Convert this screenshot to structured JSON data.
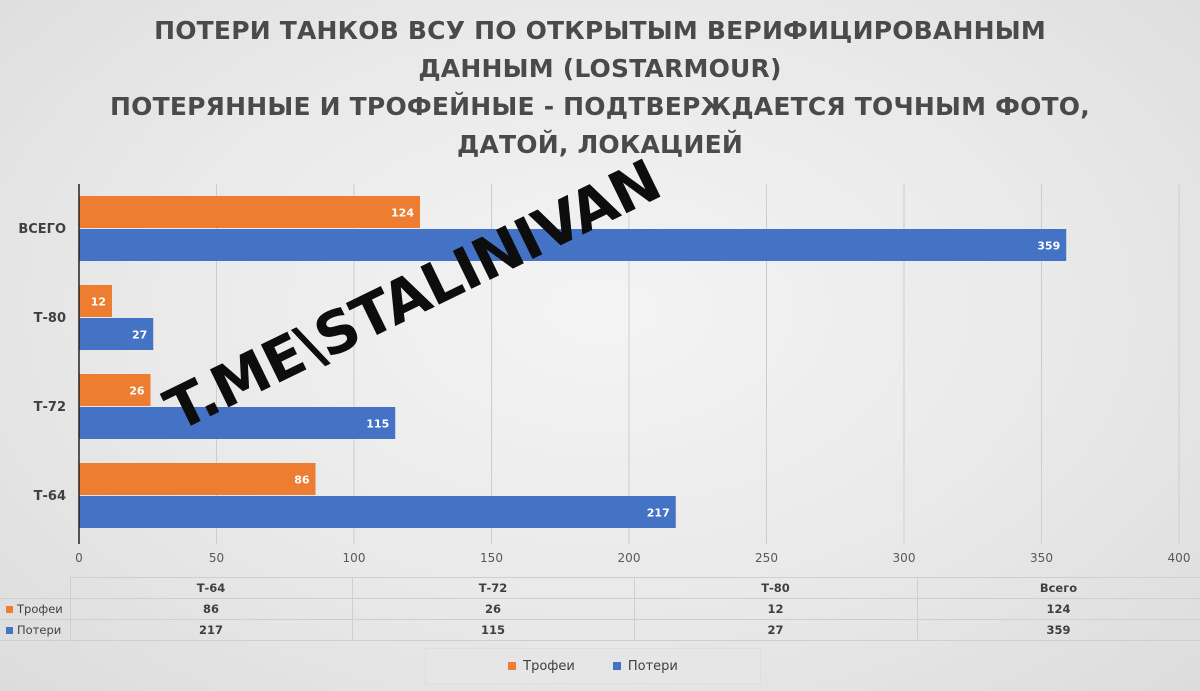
{
  "title_lines": [
    "ПОТЕРИ ТАНКОВ ВСУ ПО ОТКРЫТЫМ ВЕРИФИЦИРОВАННЫМ",
    "ДАННЫМ (LOSTARMOUR)",
    "ПОТЕРЯННЫЕ И ТРОФЕЙНЫЕ - ПОДТВЕРЖДАЕТСЯ ТОЧНЫМ ФОТО,",
    "ДАТОЙ, ЛОКАЦИЕЙ"
  ],
  "watermark": "T.ME\\STALINIVAN",
  "colors": {
    "trophies": "#ED7D31",
    "losses": "#4472C4"
  },
  "chart_data": {
    "type": "bar",
    "orientation": "horizontal",
    "categories": [
      "ВСЕГО",
      "Т-80",
      "Т-72",
      "Т-64"
    ],
    "series": [
      {
        "name": "Трофеи",
        "values": [
          124,
          12,
          26,
          86
        ]
      },
      {
        "name": "Потери",
        "values": [
          359,
          27,
          115,
          217
        ]
      }
    ],
    "xlim": [
      0,
      400
    ],
    "xticks": [
      0,
      50,
      100,
      150,
      200,
      250,
      300,
      350,
      400
    ],
    "grid": "vertical",
    "legend": "bottom"
  },
  "table": {
    "columns": [
      "Т-64",
      "Т-72",
      "Т-80",
      "Всего"
    ],
    "rows": [
      {
        "name": "Трофеи",
        "values": [
          "86",
          "26",
          "12",
          "124"
        ]
      },
      {
        "name": "Потери",
        "values": [
          "217",
          "115",
          "27",
          "359"
        ]
      }
    ]
  },
  "legend": [
    "Трофеи",
    "Потери"
  ]
}
